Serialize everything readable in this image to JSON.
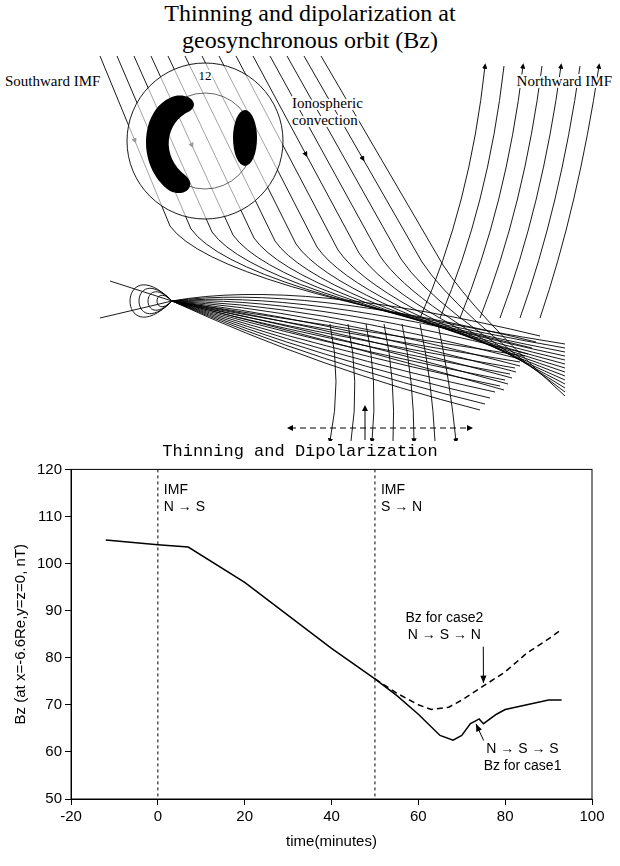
{
  "title": "Thinning and dipolarization at geosynchronous orbit (Bz)",
  "diagram": {
    "labels": {
      "southward": "Southward IMF",
      "northward": "Northward IMF",
      "ionosphere": "Ionospheric convection",
      "noon": "12"
    }
  },
  "chart_data": {
    "type": "line",
    "title": "Thinning and Dipolarization",
    "xlabel": "time(minutes)",
    "ylabel": "Bz (at x=-6.6Re,y=z=0, nT)",
    "xlim": [
      -20,
      100
    ],
    "xticks": [
      -20,
      0,
      20,
      40,
      60,
      80,
      100
    ],
    "ylim": [
      50,
      120
    ],
    "yticks": [
      50,
      60,
      70,
      80,
      90,
      100,
      110,
      120
    ],
    "grid": false,
    "series": [
      {
        "name": "Bz for case1",
        "color": "#000000",
        "line_style": "solid",
        "marker": "none",
        "x": [
          -12,
          0,
          7,
          20,
          30,
          40,
          50,
          55,
          60,
          65,
          68,
          70,
          72,
          73,
          74,
          75,
          78,
          80,
          85,
          90,
          93
        ],
        "values": [
          105,
          104,
          103.5,
          96,
          89,
          82,
          75.5,
          72,
          68,
          63.5,
          62.5,
          63.5,
          66,
          66.5,
          67,
          66,
          68,
          69,
          70,
          71,
          71
        ]
      },
      {
        "name": "Bz for case2",
        "color": "#000000",
        "line_style": "dashed",
        "marker": "none",
        "x": [
          50,
          55,
          60,
          63,
          67,
          70,
          75,
          80,
          85,
          90,
          93
        ],
        "values": [
          75.5,
          72.5,
          70,
          69,
          69.5,
          71,
          74,
          77,
          81,
          84,
          86
        ]
      }
    ],
    "annotations": [
      {
        "type": "vline",
        "x": 0,
        "y": 117,
        "lines": [
          "IMF",
          "N → S"
        ]
      },
      {
        "type": "vline",
        "x": 50,
        "y": 117,
        "lines": [
          "IMF",
          "S → N"
        ]
      },
      {
        "type": "arrow",
        "x": 66,
        "y": 90,
        "lines": [
          "Bz for case2",
          "N → S → N"
        ],
        "arrow_x": 76
      },
      {
        "type": "arrow",
        "x": 84,
        "y": 62,
        "lines": [
          "N → S → S",
          "Bz for case1"
        ],
        "arrow_x": 73
      }
    ]
  }
}
